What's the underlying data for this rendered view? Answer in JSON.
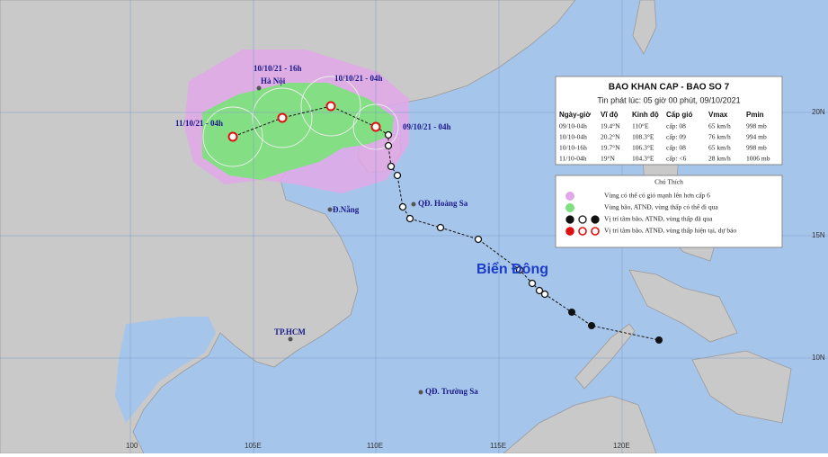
{
  "map": {
    "labels": {
      "hanoi": "Hà Nội",
      "danang": "Đ.Nẵng",
      "hcm": "TP.HCM",
      "hoangsa": "QĐ. Hoàng Sa",
      "truongsa": "QĐ. Trường Sa",
      "biendong": "Biển Đông"
    },
    "track_labels": [
      "11/10/21 - 04h",
      "10/10/21 - 16h",
      "10/10/21 - 04h",
      "09/10/21 - 04h"
    ],
    "x_labels": [
      "100",
      "105E",
      "110E",
      "115E",
      "120E"
    ],
    "y_labels": [
      "20N",
      "15N",
      "10N"
    ]
  },
  "info_panel": {
    "title": "BAO KHAN CAP - BAO SO 7",
    "issued": "Tin phát lúc: 05 giờ 00 phút, 09/10/2021",
    "headers": [
      "Ngày-giờ",
      "Vĩ độ",
      "Kinh độ",
      "Cấp gió",
      "Vmax",
      "Pmin"
    ],
    "rows": [
      [
        "09/10-04h",
        "19.4°N",
        "110°E",
        "cấp: 08",
        "65 km/h",
        "998 mb"
      ],
      [
        "10/10-04h",
        "20.2°N",
        "108.3°E",
        "cấp: 09",
        "76 km/h",
        "994 mb"
      ],
      [
        "10/10-16h",
        "19.7°N",
        "106.3°E",
        "cấp: 08",
        "65 km/h",
        "998 mb"
      ],
      [
        "11/10-04h",
        "19°N",
        "104.3°E",
        "cấp: <6",
        "28 km/h",
        "1006 mb"
      ]
    ]
  },
  "legend": {
    "title": "Chú Thích",
    "items": [
      "Vùng có thể có gió mạnh lên hơn cấp 6",
      "Vùng bão, ATNĐ, vùng thấp có thể đi qua",
      "Vị trí tâm bão, ATNĐ, vùng thấp đã qua",
      "Vị trí tâm bão, ATNĐ, vùng thấp hiện tại, dự báo"
    ]
  }
}
